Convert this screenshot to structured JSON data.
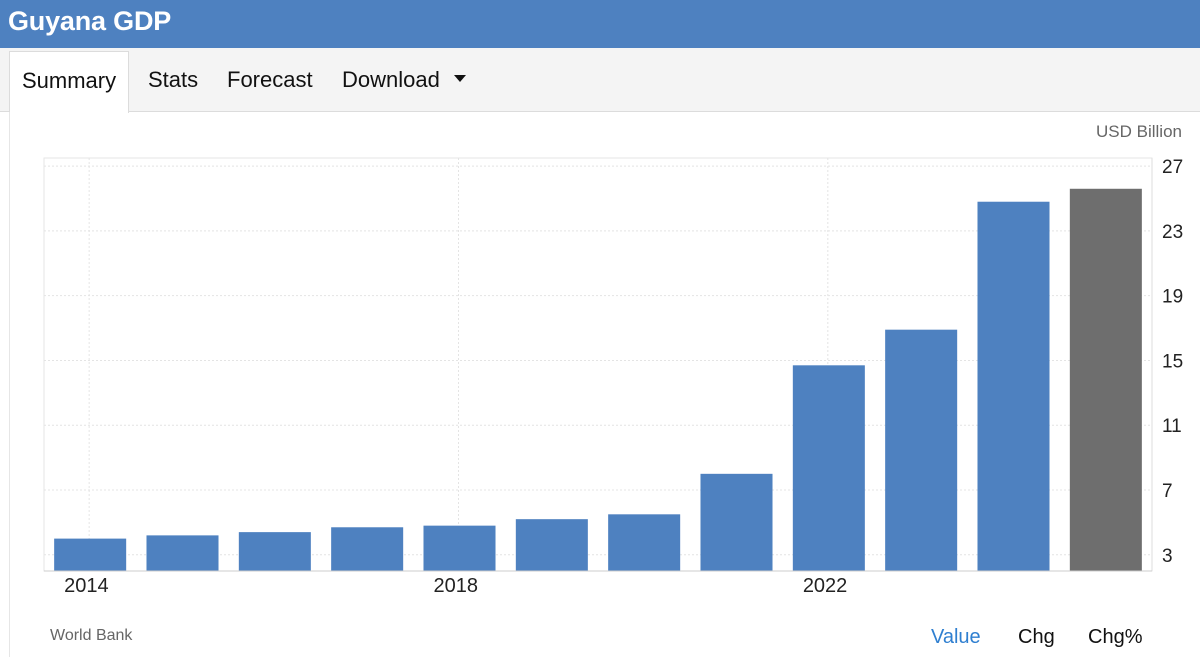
{
  "header": {
    "title": "Guyana GDP"
  },
  "tabs": [
    {
      "label": "Summary",
      "active": true
    },
    {
      "label": "Stats"
    },
    {
      "label": "Forecast"
    },
    {
      "label": "Download",
      "icon": "caret-down-icon"
    }
  ],
  "chart_data": {
    "type": "bar",
    "unit": "USD Billion",
    "categories": [
      "2014",
      "2015",
      "2016",
      "2017",
      "2018",
      "2019",
      "2020",
      "2021",
      "2022",
      "2023",
      "2024",
      "2025"
    ],
    "values": [
      4.0,
      4.2,
      4.4,
      4.7,
      4.8,
      5.2,
      5.5,
      8.0,
      14.7,
      16.9,
      24.8,
      25.6
    ],
    "bar_colors": [
      "#4e81c0",
      "#4e81c0",
      "#4e81c0",
      "#4e81c0",
      "#4e81c0",
      "#4e81c0",
      "#4e81c0",
      "#4e81c0",
      "#4e81c0",
      "#4e81c0",
      "#4e81c0",
      "#6e6e6e"
    ],
    "x_tick_labels": [
      "2014",
      "2018",
      "2022"
    ],
    "y_ticks": [
      3,
      7,
      11,
      15,
      19,
      23,
      27
    ],
    "ylim": [
      2,
      27.5
    ],
    "grid": true,
    "y_axis_position": "right"
  },
  "footer": {
    "source": "World Bank",
    "toggles": [
      {
        "label": "Value",
        "active": true
      },
      {
        "label": "Chg"
      },
      {
        "label": "Chg%"
      }
    ]
  }
}
